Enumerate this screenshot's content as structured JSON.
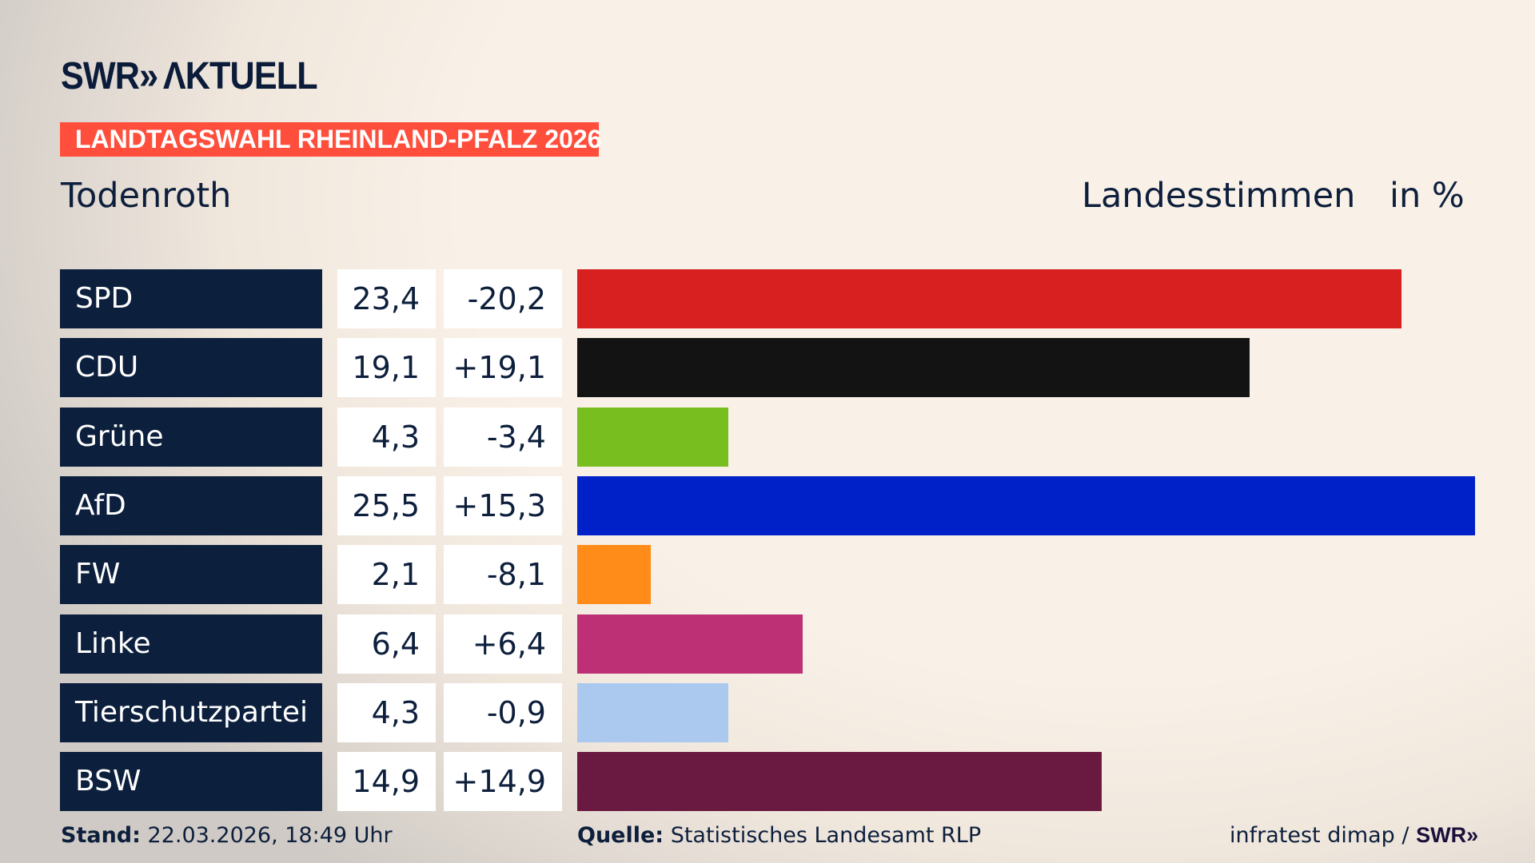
{
  "header": {
    "logo": "SWR» AKTUELL",
    "banner": "LANDTAGSWAHL RHEINLAND-PFALZ 2026",
    "place": "Todenroth",
    "measure": "Landesstimmen",
    "unit": "in %"
  },
  "chart_data": {
    "type": "bar",
    "orientation": "horizontal",
    "title": "Todenroth",
    "xlabel": "Landesstimmen in %",
    "xlim": [
      0,
      25.5
    ],
    "grid": false,
    "categories": [
      "SPD",
      "CDU",
      "Grüne",
      "AfD",
      "FW",
      "Linke",
      "Tierschutzpartei",
      "BSW"
    ],
    "values": [
      23.4,
      19.1,
      4.3,
      25.5,
      2.1,
      6.4,
      4.3,
      14.9
    ],
    "value_labels": [
      "23,4",
      "19,1",
      "4,3",
      "25,5",
      "2,1",
      "6,4",
      "4,3",
      "14,9"
    ],
    "change_labels": [
      "-20,2",
      "+19,1",
      "-3,4",
      "+15,3",
      "-8,1",
      "+6,4",
      "-0,9",
      "+14,9"
    ],
    "colors": [
      "#d82020",
      "#131313",
      "#78be1e",
      "#0021c8",
      "#ff8c19",
      "#bd3075",
      "#abc9ef",
      "#6a1940"
    ]
  },
  "footer": {
    "stand_label": "Stand:",
    "stand_value": "22.03.2026, 18:49 Uhr",
    "source_label": "Quelle:",
    "source_value": "Statistisches Landesamt RLP",
    "credit": "infratest dimap /",
    "credit_logo": "SWR»"
  }
}
